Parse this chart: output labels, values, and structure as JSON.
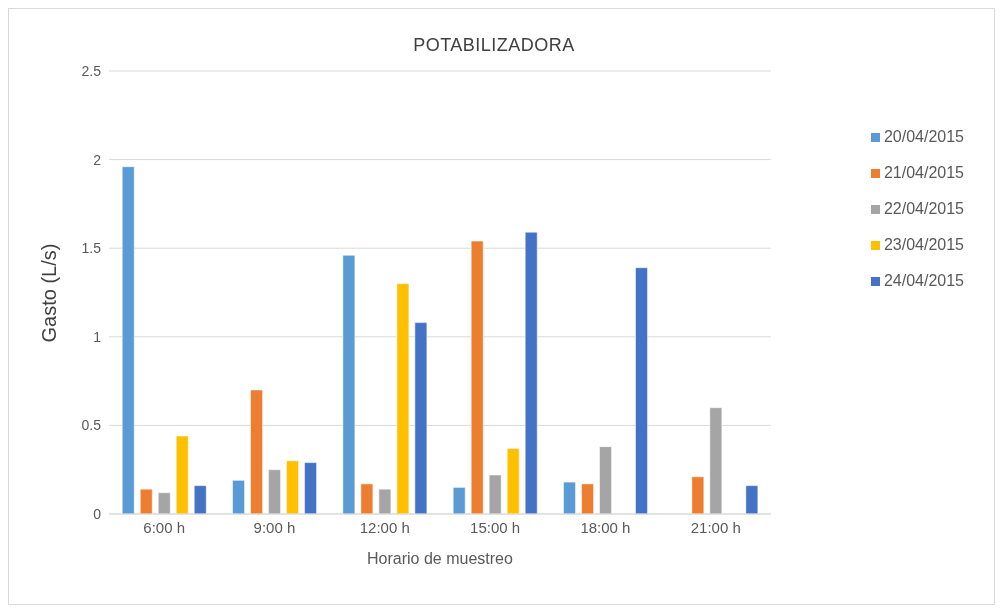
{
  "chart_data": {
    "type": "bar",
    "title": "POTABILIZADORA",
    "xlabel": "Horario de muestreo",
    "ylabel": "Gasto (L/s)",
    "categories": [
      "6:00 h",
      "9:00 h",
      "12:00 h",
      "15:00 h",
      "18:00 h",
      "21:00 h"
    ],
    "series": [
      {
        "name": "20/04/2015",
        "color": "#5b9bd5",
        "values": [
          1.96,
          0.19,
          1.46,
          0.15,
          0.18,
          null
        ]
      },
      {
        "name": "21/04/2015",
        "color": "#ed7d31",
        "values": [
          0.14,
          0.7,
          0.17,
          1.54,
          0.17,
          0.21
        ]
      },
      {
        "name": "22/04/2015",
        "color": "#a5a5a5",
        "values": [
          0.12,
          0.25,
          0.14,
          0.22,
          0.38,
          0.6
        ]
      },
      {
        "name": "23/04/2015",
        "color": "#ffc000",
        "values": [
          0.44,
          0.3,
          1.3,
          0.37,
          null,
          null
        ]
      },
      {
        "name": "24/04/2015",
        "color": "#4472c4",
        "values": [
          0.16,
          0.29,
          1.08,
          1.59,
          1.39,
          0.16
        ]
      }
    ],
    "ylim": [
      0,
      2.5
    ],
    "yticks": [
      0,
      0.5,
      1,
      1.5,
      2,
      2.5
    ],
    "grid": "y",
    "legend": "right"
  }
}
